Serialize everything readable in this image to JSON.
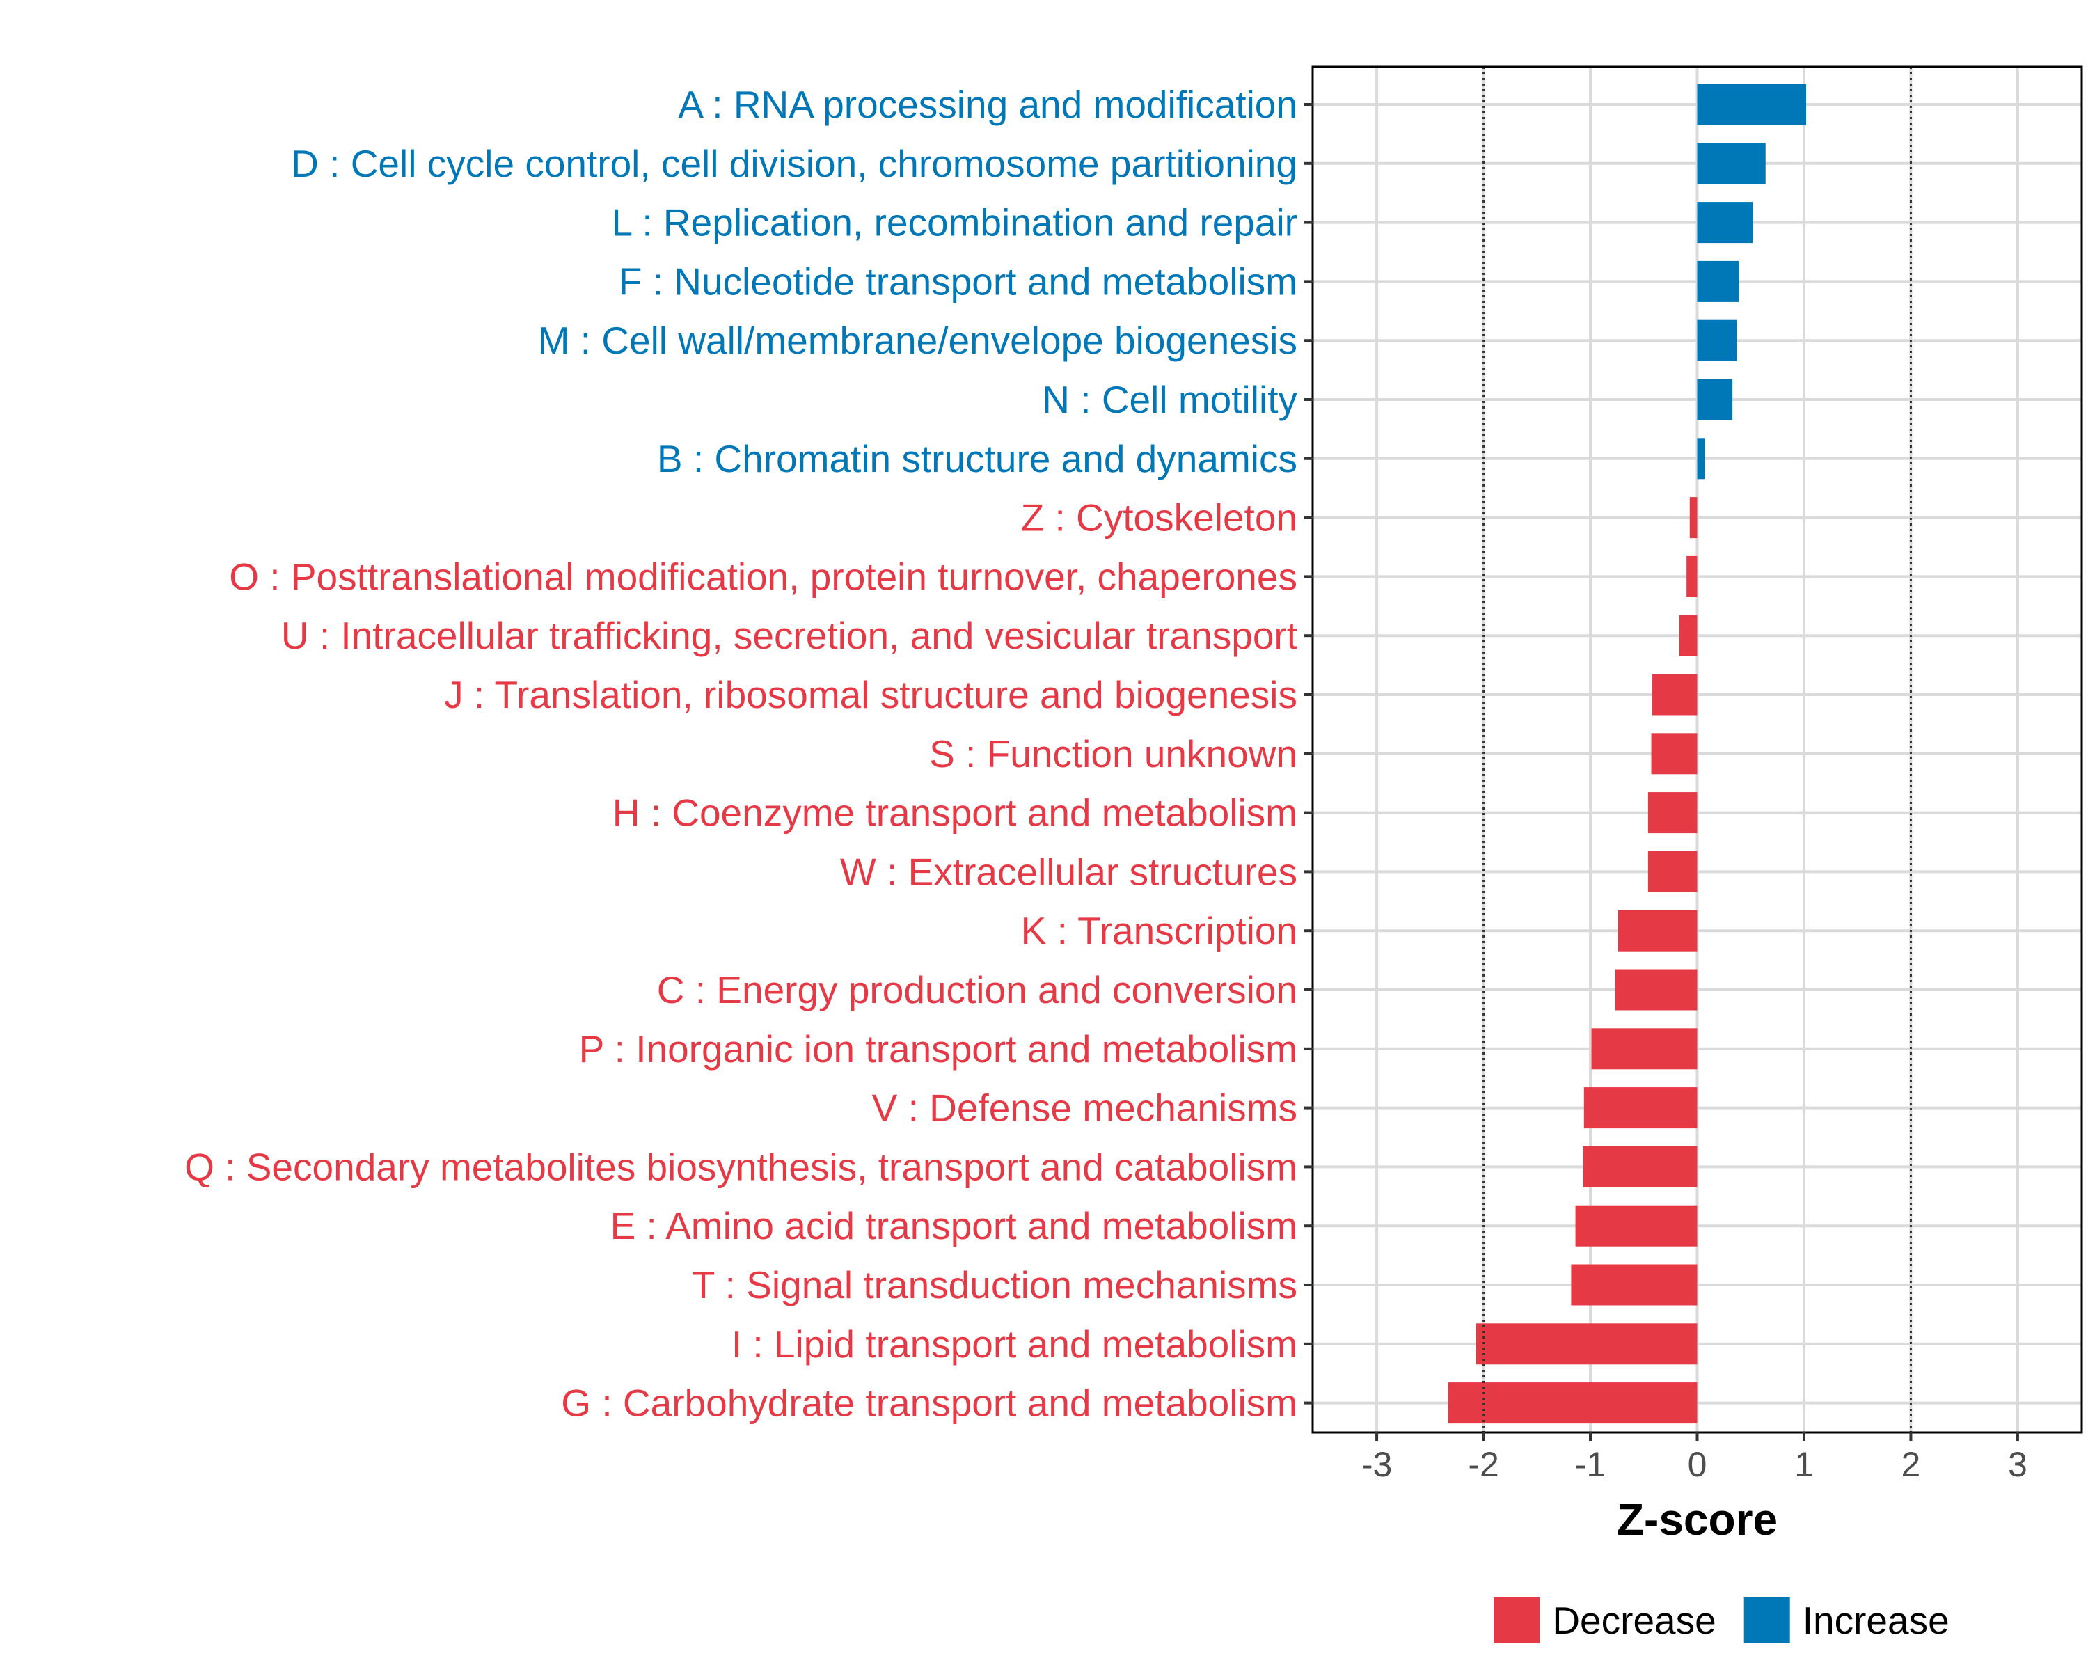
{
  "chart_data": {
    "type": "bar",
    "orientation": "horizontal",
    "xlabel": "Z-score",
    "xlim": [
      -3.6,
      3.6
    ],
    "xticks": [
      -3,
      -2,
      -1,
      0,
      1,
      2,
      3
    ],
    "reference_lines": [
      -2,
      2
    ],
    "grid": true,
    "legend_position": "bottom",
    "colors": {
      "Decrease": "#e63946",
      "Increase": "#0077b6"
    },
    "legend": [
      {
        "name": "Decrease",
        "color": "#e63946"
      },
      {
        "name": "Increase",
        "color": "#0077b6"
      }
    ],
    "categories": [
      "A : RNA processing and modification",
      "D : Cell cycle control, cell division, chromosome partitioning",
      "L : Replication, recombination and repair",
      "F : Nucleotide transport and metabolism",
      "M : Cell wall/membrane/envelope biogenesis",
      "N : Cell motility",
      "B : Chromatin structure and dynamics",
      "Z : Cytoskeleton",
      "O : Posttranslational modification, protein turnover, chaperones",
      "U : Intracellular trafficking, secretion, and vesicular transport",
      "J : Translation, ribosomal structure and biogenesis",
      "S : Function unknown",
      "H : Coenzyme transport and metabolism",
      "W : Extracellular structures",
      "K : Transcription",
      "C : Energy production and conversion",
      "P : Inorganic ion transport and metabolism",
      "V : Defense mechanisms",
      "Q : Secondary metabolites biosynthesis, transport and catabolism",
      "E : Amino acid transport and metabolism",
      "T : Signal transduction mechanisms",
      "I : Lipid transport and metabolism",
      "G : Carbohydrate transport and metabolism"
    ],
    "values": [
      1.02,
      0.64,
      0.52,
      0.39,
      0.37,
      0.33,
      0.07,
      -0.07,
      -0.1,
      -0.17,
      -0.42,
      -0.43,
      -0.46,
      -0.46,
      -0.74,
      -0.77,
      -0.99,
      -1.06,
      -1.07,
      -1.14,
      -1.18,
      -2.07,
      -2.33
    ],
    "groups": [
      "Increase",
      "Increase",
      "Increase",
      "Increase",
      "Increase",
      "Increase",
      "Increase",
      "Decrease",
      "Decrease",
      "Decrease",
      "Decrease",
      "Decrease",
      "Decrease",
      "Decrease",
      "Decrease",
      "Decrease",
      "Decrease",
      "Decrease",
      "Decrease",
      "Decrease",
      "Decrease",
      "Decrease",
      "Decrease"
    ]
  }
}
